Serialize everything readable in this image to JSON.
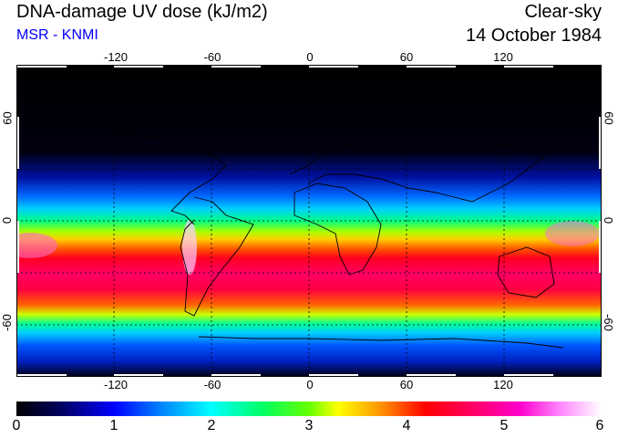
{
  "header": {
    "title": "DNA-damage UV dose (kJ/m2)",
    "organisation": "MSR - KNMI",
    "condition": "Clear-sky",
    "date": "14 October 1984"
  },
  "map": {
    "lon_ticks": [
      "-120",
      "-60",
      "0",
      "60",
      "120"
    ],
    "lat_ticks_left": [
      "60",
      "0",
      "-60"
    ],
    "lat_ticks_right": [
      "60",
      "0",
      "-60"
    ]
  },
  "colorbar": {
    "labels": [
      "0",
      "1",
      "2",
      "3",
      "4",
      "5",
      "6"
    ],
    "range": [
      0,
      6
    ],
    "colors": [
      "#000000",
      "#0000ff",
      "#00ffff",
      "#66ff00",
      "#ffff00",
      "#ff0000",
      "#ff00cc",
      "#ffffff"
    ]
  }
}
